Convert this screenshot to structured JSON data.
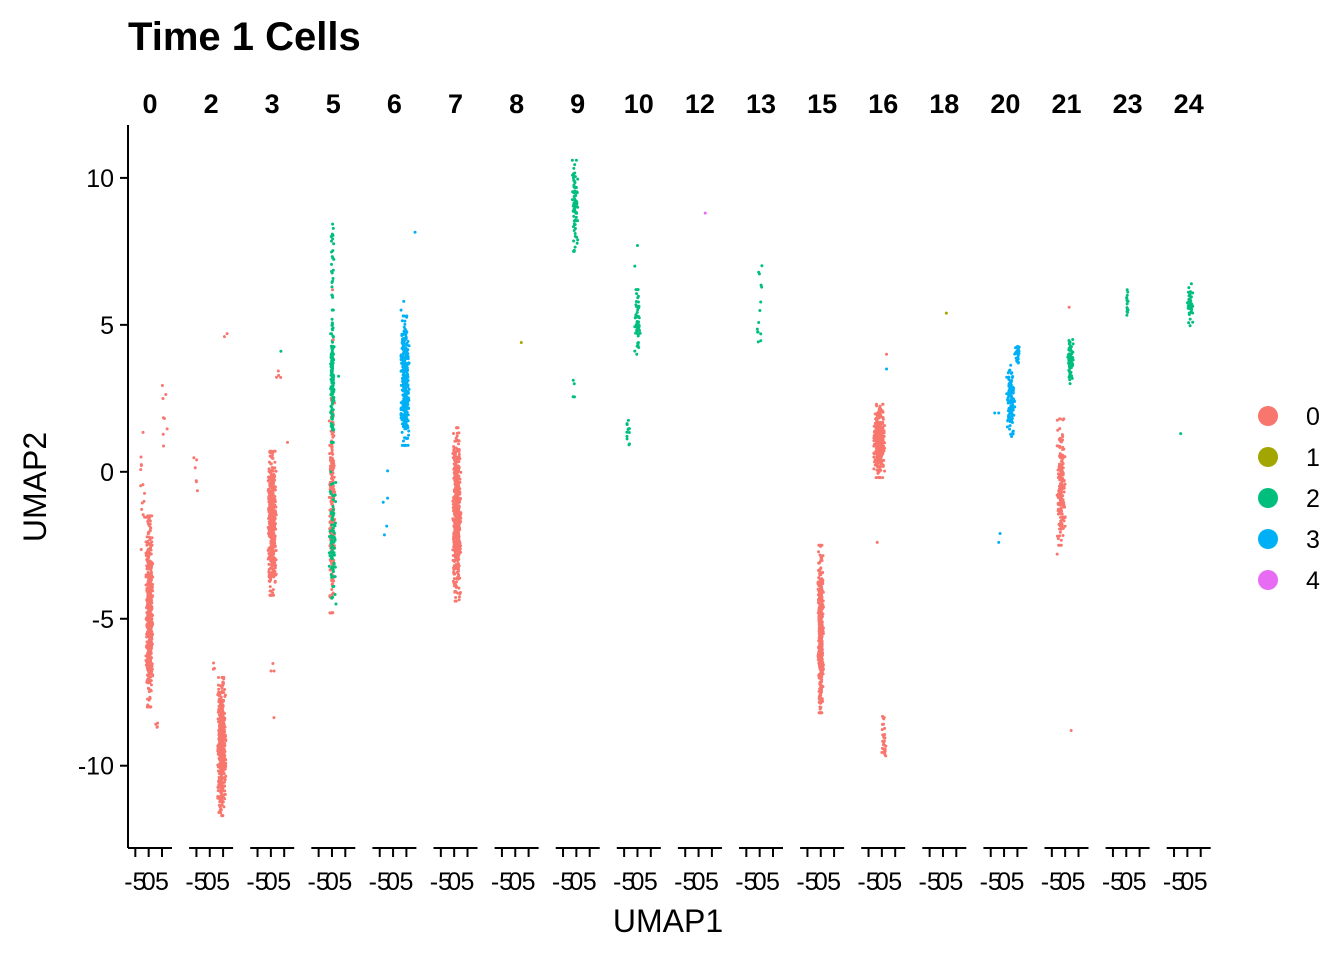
{
  "chart_data": {
    "type": "scatter",
    "title": "Time 1 Cells",
    "xlabel": "UMAP1",
    "ylabel": "UMAP2",
    "ylim": [
      -12.8,
      11.8
    ],
    "ytick_labels": [
      "-10",
      "-5",
      "0",
      "5",
      "10"
    ],
    "yticks": [
      -10,
      -5,
      0,
      5,
      10
    ],
    "panel_xlim": [
      -7,
      8
    ],
    "panel_xticks": [
      -5,
      0,
      5
    ],
    "panel_xtick_labels": [
      "-5",
      "0",
      "5"
    ],
    "facets": [
      "0",
      "2",
      "3",
      "5",
      "6",
      "7",
      "8",
      "9",
      "10",
      "12",
      "13",
      "15",
      "16",
      "18",
      "20",
      "21",
      "23",
      "24"
    ],
    "legend": {
      "position": "right",
      "entries": [
        "0",
        "1",
        "2",
        "3",
        "4"
      ]
    },
    "colors": {
      "0": "#F8766D",
      "1": "#A3A500",
      "2": "#00BF7D",
      "3": "#00B0F6",
      "4": "#E76BF3"
    },
    "grid": false,
    "clusters": [
      {
        "facet": "0",
        "group": "0",
        "x": [
          -1,
          1.5
        ],
        "y": [
          -8,
          -1.5
        ],
        "n": 500
      },
      {
        "facet": "0",
        "group": "0",
        "x": [
          -3,
          -1.5
        ],
        "y": [
          -3,
          1.7
        ],
        "n": 14
      },
      {
        "facet": "0",
        "group": "0",
        "x": [
          5,
          7
        ],
        "y": [
          0.8,
          3
        ],
        "n": 8
      },
      {
        "facet": "0",
        "group": "0",
        "x": [
          2.5,
          3.5
        ],
        "y": [
          -9,
          -8.5
        ],
        "n": 4
      },
      {
        "facet": "2",
        "group": "0",
        "x": [
          3,
          6
        ],
        "y": [
          -11.7,
          -7
        ],
        "n": 500
      },
      {
        "facet": "2",
        "group": "0",
        "x": [
          1,
          2.5
        ],
        "y": [
          -6.8,
          -6.5
        ],
        "n": 3
      },
      {
        "facet": "2",
        "group": "0",
        "x": [
          -6,
          -4
        ],
        "y": [
          -0.9,
          0.5
        ],
        "n": 6
      },
      {
        "facet": "2",
        "group": "0",
        "x": [
          5.5,
          6.5
        ],
        "y": [
          4.6,
          4.7
        ],
        "n": 2
      },
      {
        "facet": "3",
        "group": "0",
        "x": [
          -1,
          2
        ],
        "y": [
          -4.2,
          0.7
        ],
        "n": 450
      },
      {
        "facet": "3",
        "group": "0",
        "x": [
          -1,
          2
        ],
        "y": [
          -8.5,
          -5.8
        ],
        "n": 4
      },
      {
        "facet": "3",
        "group": "0",
        "x": [
          2,
          4
        ],
        "y": [
          3.2,
          3.5
        ],
        "n": 4
      },
      {
        "facet": "3",
        "group": "2",
        "x": [
          3.5,
          4
        ],
        "y": [
          4.1,
          4.1
        ],
        "n": 1
      },
      {
        "facet": "3",
        "group": "0",
        "x": [
          6,
          6.5
        ],
        "y": [
          1,
          1
        ],
        "n": 1
      },
      {
        "facet": "5",
        "group": "0",
        "x": [
          -1,
          1
        ],
        "y": [
          -4.8,
          2.5
        ],
        "n": 220
      },
      {
        "facet": "5",
        "group": "2",
        "x": [
          -1,
          1.5
        ],
        "y": [
          -4.5,
          0
        ],
        "n": 80
      },
      {
        "facet": "5",
        "group": "2",
        "x": [
          -0.5,
          0.8
        ],
        "y": [
          1,
          5.5
        ],
        "n": 150
      },
      {
        "facet": "5",
        "group": "2",
        "x": [
          -0.5,
          0.8
        ],
        "y": [
          5.5,
          8.9
        ],
        "n": 25
      },
      {
        "facet": "5",
        "group": "0",
        "x": [
          -0.5,
          1
        ],
        "y": [
          -7,
          10.4
        ],
        "n": 5
      },
      {
        "facet": "5",
        "group": "2",
        "x": [
          2,
          3
        ],
        "y": [
          3.2,
          3.3
        ],
        "n": 1
      },
      {
        "facet": "6",
        "group": "3",
        "x": [
          3,
          6
        ],
        "y": [
          0.9,
          5.3
        ],
        "n": 400
      },
      {
        "facet": "6",
        "group": "3",
        "x": [
          3,
          4
        ],
        "y": [
          5.5,
          5.8
        ],
        "n": 2
      },
      {
        "facet": "6",
        "group": "3",
        "x": [
          -4,
          -2
        ],
        "y": [
          -3.5,
          0.1
        ],
        "n": 5
      },
      {
        "facet": "6",
        "group": "3",
        "x": [
          8,
          8.5
        ],
        "y": [
          8.1,
          8.2
        ],
        "n": 1
      },
      {
        "facet": "7",
        "group": "0",
        "x": [
          -0.5,
          2.5
        ],
        "y": [
          -4.4,
          1.5
        ],
        "n": 500
      },
      {
        "facet": "8",
        "group": "1",
        "x": [
          2,
          2.5
        ],
        "y": [
          4.4,
          4.4
        ],
        "n": 1
      },
      {
        "facet": "9",
        "group": "2",
        "x": [
          -1.5,
          0.5
        ],
        "y": [
          7.5,
          10.6
        ],
        "n": 80
      },
      {
        "facet": "9",
        "group": "2",
        "x": [
          -1.5,
          -0.5
        ],
        "y": [
          2.2,
          3.2
        ],
        "n": 4
      },
      {
        "facet": "10",
        "group": "2",
        "x": [
          -1,
          1
        ],
        "y": [
          4,
          6.2
        ],
        "n": 60
      },
      {
        "facet": "10",
        "group": "2",
        "x": [
          -4,
          -3
        ],
        "y": [
          0.9,
          1.8
        ],
        "n": 12
      },
      {
        "facet": "10",
        "group": "2",
        "x": [
          -1,
          0
        ],
        "y": [
          7,
          7.7
        ],
        "n": 2
      },
      {
        "facet": "12",
        "group": "4",
        "x": [
          2,
          3
        ],
        "y": [
          8.8,
          8.8
        ],
        "n": 1
      },
      {
        "facet": "13",
        "group": "2",
        "x": [
          -1,
          1
        ],
        "y": [
          4.1,
          7.2
        ],
        "n": 14
      },
      {
        "facet": "15",
        "group": "0",
        "x": [
          -1,
          1
        ],
        "y": [
          -8.2,
          -2.5
        ],
        "n": 450
      },
      {
        "facet": "16",
        "group": "0",
        "x": [
          -3,
          1
        ],
        "y": [
          -0.2,
          2.3
        ],
        "n": 300
      },
      {
        "facet": "16",
        "group": "0",
        "x": [
          0,
          1.5
        ],
        "y": [
          -9.8,
          -8.2
        ],
        "n": 30
      },
      {
        "facet": "16",
        "group": "0",
        "x": [
          -2,
          -1.5
        ],
        "y": [
          -2.4,
          -2.4
        ],
        "n": 1
      },
      {
        "facet": "16",
        "group": "0",
        "x": [
          1.5,
          2
        ],
        "y": [
          4,
          4
        ],
        "n": 1
      },
      {
        "facet": "16",
        "group": "3",
        "x": [
          1.5,
          2
        ],
        "y": [
          3.5,
          3.5
        ],
        "n": 1
      },
      {
        "facet": "18",
        "group": "1",
        "x": [
          1,
          1.5
        ],
        "y": [
          5.4,
          5.4
        ],
        "n": 1
      },
      {
        "facet": "20",
        "group": "3",
        "x": [
          1,
          4
        ],
        "y": [
          1.2,
          3.7
        ],
        "n": 120
      },
      {
        "facet": "20",
        "group": "3",
        "x": [
          4,
          6
        ],
        "y": [
          3.7,
          4.4
        ],
        "n": 25
      },
      {
        "facet": "20",
        "group": "3",
        "x": [
          -3.5,
          -2
        ],
        "y": [
          2,
          2
        ],
        "n": 2
      },
      {
        "facet": "20",
        "group": "3",
        "x": [
          -2,
          -1.5
        ],
        "y": [
          -2.4,
          -2.1
        ],
        "n": 2
      },
      {
        "facet": "21",
        "group": "0",
        "x": [
          -3,
          0
        ],
        "y": [
          -2.5,
          1.8
        ],
        "n": 180
      },
      {
        "facet": "21",
        "group": "0",
        "x": [
          -3,
          -2
        ],
        "y": [
          -2.8,
          -2.5
        ],
        "n": 2
      },
      {
        "facet": "21",
        "group": "0",
        "x": [
          1,
          2
        ],
        "y": [
          5.6,
          5.6
        ],
        "n": 1
      },
      {
        "facet": "21",
        "group": "0",
        "x": [
          2,
          2.5
        ],
        "y": [
          -8.8,
          -8.8
        ],
        "n": 1
      },
      {
        "facet": "21",
        "group": "2",
        "x": [
          1,
          3
        ],
        "y": [
          3,
          4.5
        ],
        "n": 80
      },
      {
        "facet": "23",
        "group": "2",
        "x": [
          0,
          1
        ],
        "y": [
          5.3,
          6.2
        ],
        "n": 15
      },
      {
        "facet": "24",
        "group": "2",
        "x": [
          0,
          2
        ],
        "y": [
          4.9,
          6.4
        ],
        "n": 40
      },
      {
        "facet": "24",
        "group": "2",
        "x": [
          -3,
          -2
        ],
        "y": [
          1.3,
          1.3
        ],
        "n": 1
      }
    ]
  }
}
